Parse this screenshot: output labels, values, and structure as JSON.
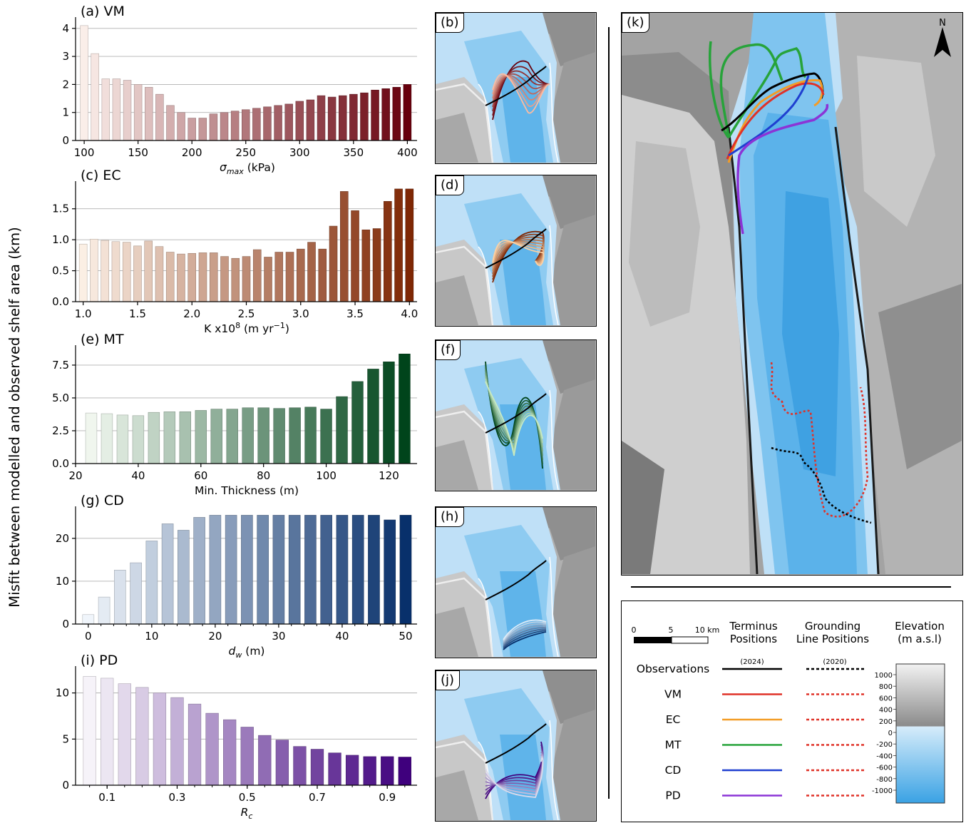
{
  "y_axis_label": "Misfit between modelled and observed shelf area (km)",
  "chart_data": [
    {
      "id": "a",
      "type": "bar",
      "label": "(a) VM",
      "xlabel_main": "σ",
      "xlabel_sub": "max",
      "xlabel_tail": " (kPa)",
      "x": [
        100,
        110,
        120,
        130,
        140,
        150,
        160,
        170,
        180,
        190,
        200,
        210,
        220,
        230,
        240,
        250,
        260,
        270,
        280,
        290,
        300,
        310,
        320,
        330,
        340,
        350,
        360,
        370,
        380,
        390,
        400
      ],
      "values": [
        4.1,
        3.1,
        2.2,
        2.2,
        2.15,
        2.0,
        1.9,
        1.65,
        1.25,
        1.0,
        0.8,
        0.8,
        0.95,
        1.0,
        1.05,
        1.1,
        1.15,
        1.2,
        1.25,
        1.3,
        1.4,
        1.45,
        1.6,
        1.55,
        1.6,
        1.65,
        1.7,
        1.8,
        1.85,
        1.9,
        2.0
      ],
      "xlim": [
        92,
        409
      ],
      "ylim": [
        0,
        4.3
      ],
      "xticks": [
        100,
        150,
        200,
        250,
        300,
        350,
        400
      ],
      "xtick_labels": [
        "100",
        "150",
        "200",
        "250",
        "300",
        "350",
        "400"
      ],
      "yticks": [
        0,
        1,
        2,
        3,
        4
      ],
      "ytick_labels": [
        "0",
        "1",
        "2",
        "3",
        "4"
      ],
      "colors": [
        "#fff5f0",
        "#67000d"
      ]
    },
    {
      "id": "c",
      "type": "bar",
      "label": "(c) EC",
      "xlabel_main": "K x10",
      "xlabel_sup": "8",
      "xlabel_tail": " (m yr",
      "xlabel_sup2": "−1",
      "xlabel_end": ")",
      "x": [
        1.0,
        1.1,
        1.2,
        1.3,
        1.4,
        1.5,
        1.6,
        1.7,
        1.8,
        1.9,
        2.0,
        2.1,
        2.2,
        2.3,
        2.4,
        2.5,
        2.6,
        2.7,
        2.8,
        2.9,
        3.0,
        3.1,
        3.2,
        3.3,
        3.4,
        3.5,
        3.6,
        3.7,
        3.8,
        3.9,
        4.0
      ],
      "values": [
        0.93,
        1.01,
        0.99,
        0.97,
        0.96,
        0.9,
        0.98,
        0.89,
        0.8,
        0.77,
        0.78,
        0.79,
        0.79,
        0.73,
        0.7,
        0.73,
        0.84,
        0.72,
        0.8,
        0.8,
        0.85,
        0.96,
        0.85,
        1.22,
        1.78,
        1.47,
        1.16,
        1.18,
        1.62,
        1.82,
        1.82
      ],
      "xlim": [
        0.93,
        4.07
      ],
      "ylim": [
        0,
        1.9
      ],
      "xticks": [
        1.0,
        1.5,
        2.0,
        2.5,
        3.0,
        3.5,
        4.0
      ],
      "xtick_labels": [
        "1.0",
        "1.5",
        "2.0",
        "2.5",
        "3.0",
        "3.5",
        "4.0"
      ],
      "yticks": [
        0,
        0.5,
        1.0,
        1.5
      ],
      "ytick_labels": [
        "0.0",
        "0.5",
        "1.0",
        "1.5"
      ],
      "colors": [
        "#fff5eb",
        "#7f2704"
      ]
    },
    {
      "id": "e",
      "type": "bar",
      "label": "(e) MT",
      "xlabel_main": "Min. Thickness (m)",
      "x": [
        25,
        30,
        35,
        40,
        45,
        50,
        55,
        60,
        65,
        70,
        75,
        80,
        85,
        90,
        95,
        100,
        105,
        110,
        115,
        120,
        125
      ],
      "values": [
        3.85,
        3.8,
        3.7,
        3.65,
        3.9,
        3.95,
        3.95,
        4.05,
        4.15,
        4.15,
        4.25,
        4.25,
        4.2,
        4.25,
        4.3,
        4.15,
        5.1,
        6.25,
        7.2,
        7.75,
        8.35
      ],
      "xlim": [
        20,
        129
      ],
      "ylim": [
        0,
        8.8
      ],
      "xticks": [
        20,
        40,
        60,
        80,
        100,
        120
      ],
      "xtick_labels": [
        "20",
        "40",
        "60",
        "80",
        "100",
        "120"
      ],
      "yticks": [
        0,
        2.5,
        5.0,
        7.5
      ],
      "ytick_labels": [
        "0.0",
        "2.5",
        "5.0",
        "7.5"
      ],
      "colors": [
        "#f7fcf5",
        "#00441b"
      ]
    },
    {
      "id": "g",
      "type": "bar",
      "label": "(g) CD",
      "xlabel_main": "d",
      "xlabel_sub": "w",
      "xlabel_tail": " (m)",
      "x": [
        0,
        2.5,
        5,
        7.5,
        10,
        12.5,
        15,
        17.5,
        20,
        22.5,
        25,
        27.5,
        30,
        32.5,
        35,
        37.5,
        40,
        42.5,
        45,
        47.5,
        50
      ],
      "values": [
        2.2,
        6.3,
        12.6,
        14.3,
        19.4,
        23.4,
        21.9,
        24.9,
        25.4,
        25.4,
        25.4,
        25.4,
        25.4,
        25.4,
        25.4,
        25.4,
        25.4,
        25.4,
        25.4,
        24.3,
        25.4
      ],
      "xlim": [
        -2.0,
        51.8
      ],
      "ylim": [
        0,
        26.8
      ],
      "xticks": [
        0,
        10,
        20,
        30,
        40,
        50
      ],
      "xtick_labels": [
        "0",
        "10",
        "20",
        "30",
        "40",
        "50"
      ],
      "yticks": [
        0,
        10,
        20
      ],
      "ytick_labels": [
        "0",
        "10",
        "20"
      ],
      "colors": [
        "#f7fbff",
        "#08306b"
      ]
    },
    {
      "id": "i",
      "type": "bar",
      "label": "(i) PD",
      "xlabel_main": "R",
      "xlabel_sub": "c",
      "x": [
        0.05,
        0.1,
        0.15,
        0.2,
        0.25,
        0.3,
        0.35,
        0.4,
        0.45,
        0.5,
        0.55,
        0.6,
        0.65,
        0.7,
        0.75,
        0.8,
        0.85,
        0.9,
        0.95
      ],
      "values": [
        11.8,
        11.6,
        11.0,
        10.6,
        10.0,
        9.5,
        8.8,
        7.8,
        7.1,
        6.3,
        5.4,
        4.9,
        4.2,
        3.9,
        3.5,
        3.25,
        3.1,
        3.1,
        3.05
      ],
      "xlim": [
        0.01,
        0.985
      ],
      "ylim": [
        0,
        12.6
      ],
      "xticks": [
        0.1,
        0.3,
        0.5,
        0.7,
        0.9
      ],
      "xtick_labels": [
        "0.1",
        "0.3",
        "0.5",
        "0.7",
        "0.9"
      ],
      "yticks": [
        0,
        5,
        10
      ],
      "ytick_labels": [
        "0",
        "5",
        "10"
      ],
      "colors": [
        "#fcfbfd",
        "#3f007d"
      ]
    }
  ],
  "map_labels": {
    "b": "(b)",
    "d": "(d)",
    "f": "(f)",
    "h": "(h)",
    "j": "(j)",
    "k": "(k)"
  },
  "north_label": "N",
  "legend": {
    "scale": {
      "ticks": [
        "0",
        "5",
        "10 km"
      ]
    },
    "col_terminus": [
      "Terminus",
      "Positions"
    ],
    "col_grounding": [
      "Grounding",
      "Line Positions"
    ],
    "col_elevation": [
      "Elevation",
      "(m a.s.l)"
    ],
    "year_terminus": "(2024)",
    "year_grounding": "(2020)",
    "rows": [
      {
        "label": "Observations",
        "terminus_color": "#000000",
        "grounding_color": "#000000"
      },
      {
        "label": "VM",
        "terminus_color": "#e03228",
        "grounding_color": "#e03228"
      },
      {
        "label": "EC",
        "terminus_color": "#f39c26",
        "grounding_color": "#e03228"
      },
      {
        "label": "MT",
        "terminus_color": "#27a33a",
        "grounding_color": "#e03228"
      },
      {
        "label": "CD",
        "terminus_color": "#1f3fd0",
        "grounding_color": "#e03228"
      },
      {
        "label": "PD",
        "terminus_color": "#8b34d6",
        "grounding_color": "#e03228"
      }
    ],
    "colorbar_ticks": [
      "1000",
      "800",
      "600",
      "400",
      "200",
      "0",
      "-200",
      "-400",
      "-600",
      "-800",
      "-1000"
    ]
  }
}
